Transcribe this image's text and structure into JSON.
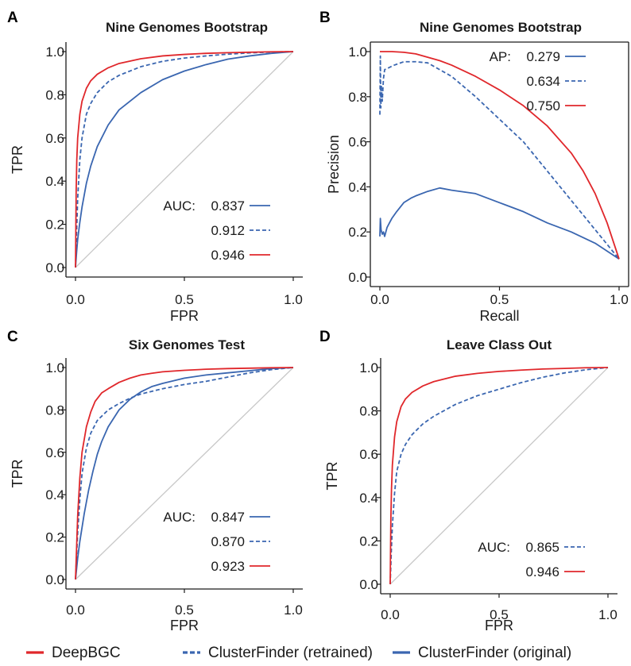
{
  "colors": {
    "red": "#e0272b",
    "blue": "#3a66b0",
    "diag": "#c8c8c8",
    "axis": "#1a1a1a"
  },
  "global_legend": [
    {
      "label": "DeepBGC",
      "color": "#e0272b",
      "style": "solid"
    },
    {
      "label": "ClusterFinder (retrained)",
      "color": "#3a66b0",
      "style": "dashed"
    },
    {
      "label": "ClusterFinder (original)",
      "color": "#3a66b0",
      "style": "solid"
    }
  ],
  "chart_data": [
    {
      "panel": "A",
      "type": "line",
      "title": "Nine Genomes Bootstrap",
      "xlabel": "FPR",
      "ylabel": "TPR",
      "xlim": [
        0,
        1
      ],
      "ylim": [
        0,
        1
      ],
      "xticks": [
        "0.0",
        "0.5",
        "1.0"
      ],
      "yticks": [
        "0.0",
        "0.2",
        "0.4",
        "0.6",
        "0.8",
        "1.0"
      ],
      "diagonal": true,
      "legend_position": "lower-right",
      "legend_prefix": "AUC:",
      "series": [
        {
          "name": "0.837",
          "model": "ClusterFinder (original)",
          "color": "#3a66b0",
          "style": "solid",
          "x": [
            0,
            0.005,
            0.01,
            0.02,
            0.03,
            0.05,
            0.07,
            0.1,
            0.15,
            0.2,
            0.3,
            0.4,
            0.5,
            0.6,
            0.7,
            0.8,
            0.9,
            1.0
          ],
          "y": [
            0,
            0.07,
            0.13,
            0.21,
            0.28,
            0.39,
            0.47,
            0.56,
            0.66,
            0.73,
            0.81,
            0.87,
            0.91,
            0.94,
            0.965,
            0.98,
            0.992,
            1.0
          ]
        },
        {
          "name": "0.912",
          "model": "ClusterFinder (retrained)",
          "color": "#3a66b0",
          "style": "dashed",
          "x": [
            0,
            0.005,
            0.01,
            0.02,
            0.03,
            0.05,
            0.07,
            0.1,
            0.15,
            0.2,
            0.3,
            0.4,
            0.5,
            0.6,
            0.7,
            0.8,
            0.9,
            1.0
          ],
          "y": [
            0,
            0.16,
            0.32,
            0.5,
            0.6,
            0.71,
            0.76,
            0.81,
            0.86,
            0.89,
            0.93,
            0.955,
            0.97,
            0.98,
            0.988,
            0.994,
            0.998,
            1.0
          ]
        },
        {
          "name": "0.946",
          "model": "DeepBGC",
          "color": "#e0272b",
          "style": "solid",
          "x": [
            0,
            0.003,
            0.006,
            0.01,
            0.02,
            0.03,
            0.05,
            0.07,
            0.1,
            0.15,
            0.2,
            0.3,
            0.4,
            0.5,
            0.6,
            0.7,
            0.8,
            0.9,
            1.0
          ],
          "y": [
            0,
            0.35,
            0.5,
            0.6,
            0.71,
            0.77,
            0.83,
            0.865,
            0.895,
            0.925,
            0.945,
            0.967,
            0.98,
            0.987,
            0.992,
            0.995,
            0.997,
            0.999,
            1.0
          ]
        }
      ]
    },
    {
      "panel": "B",
      "type": "line",
      "title": "Nine Genomes Bootstrap",
      "xlabel": "Recall",
      "ylabel": "Precision",
      "xlim": [
        0,
        1
      ],
      "ylim": [
        0,
        1
      ],
      "xticks": [
        "0.0",
        "0.5",
        "1.0"
      ],
      "yticks": [
        "0.0",
        "0.2",
        "0.4",
        "0.6",
        "0.8",
        "1.0"
      ],
      "diagonal": false,
      "legend_position": "top-right",
      "legend_prefix": "AP:",
      "series": [
        {
          "name": "0.279",
          "model": "ClusterFinder (original)",
          "color": "#3a66b0",
          "style": "solid",
          "x": [
            0,
            0.002,
            0.005,
            0.01,
            0.015,
            0.02,
            0.03,
            0.04,
            0.05,
            0.07,
            0.1,
            0.13,
            0.15,
            0.2,
            0.25,
            0.3,
            0.4,
            0.5,
            0.6,
            0.7,
            0.8,
            0.9,
            1.0
          ],
          "y": [
            0.18,
            0.26,
            0.21,
            0.19,
            0.2,
            0.18,
            0.22,
            0.24,
            0.26,
            0.29,
            0.33,
            0.35,
            0.36,
            0.38,
            0.395,
            0.385,
            0.37,
            0.33,
            0.29,
            0.24,
            0.2,
            0.15,
            0.08
          ]
        },
        {
          "name": "0.634",
          "model": "ClusterFinder (retrained)",
          "color": "#3a66b0",
          "style": "dashed",
          "x": [
            0,
            0.002,
            0.004,
            0.006,
            0.01,
            0.015,
            0.02,
            0.04,
            0.06,
            0.1,
            0.15,
            0.2,
            0.3,
            0.4,
            0.5,
            0.6,
            0.7,
            0.8,
            0.9,
            1.0
          ],
          "y": [
            0.72,
            0.98,
            0.75,
            0.85,
            0.78,
            0.88,
            0.92,
            0.93,
            0.94,
            0.955,
            0.955,
            0.95,
            0.89,
            0.8,
            0.7,
            0.6,
            0.47,
            0.34,
            0.21,
            0.08
          ]
        },
        {
          "name": "0.750",
          "model": "DeepBGC",
          "color": "#e0272b",
          "style": "solid",
          "x": [
            0,
            0.05,
            0.1,
            0.15,
            0.2,
            0.25,
            0.3,
            0.4,
            0.5,
            0.6,
            0.7,
            0.8,
            0.85,
            0.9,
            0.95,
            1.0
          ],
          "y": [
            1.0,
            1.0,
            0.997,
            0.99,
            0.975,
            0.96,
            0.94,
            0.89,
            0.83,
            0.76,
            0.67,
            0.55,
            0.47,
            0.37,
            0.24,
            0.08
          ]
        }
      ]
    },
    {
      "panel": "C",
      "type": "line",
      "title": "Six Genomes Test",
      "xlabel": "FPR",
      "ylabel": "TPR",
      "xlim": [
        0,
        1
      ],
      "ylim": [
        0,
        1
      ],
      "xticks": [
        "0.0",
        "0.5",
        "1.0"
      ],
      "yticks": [
        "0.0",
        "0.2",
        "0.4",
        "0.6",
        "0.8",
        "1.0"
      ],
      "diagonal": true,
      "legend_position": "lower-right",
      "legend_prefix": "AUC:",
      "series": [
        {
          "name": "0.847",
          "model": "ClusterFinder (original)",
          "color": "#3a66b0",
          "style": "solid",
          "x": [
            0,
            0.01,
            0.02,
            0.04,
            0.06,
            0.08,
            0.1,
            0.12,
            0.15,
            0.2,
            0.25,
            0.3,
            0.35,
            0.4,
            0.5,
            0.6,
            0.7,
            0.8,
            0.9,
            1.0
          ],
          "y": [
            0,
            0.1,
            0.18,
            0.31,
            0.42,
            0.51,
            0.59,
            0.65,
            0.72,
            0.8,
            0.85,
            0.885,
            0.91,
            0.925,
            0.95,
            0.965,
            0.975,
            0.985,
            0.995,
            1.0
          ]
        },
        {
          "name": "0.870",
          "model": "ClusterFinder (retrained)",
          "color": "#3a66b0",
          "style": "dashed",
          "x": [
            0,
            0.01,
            0.02,
            0.03,
            0.05,
            0.07,
            0.1,
            0.15,
            0.2,
            0.25,
            0.3,
            0.4,
            0.5,
            0.6,
            0.7,
            0.8,
            0.9,
            1.0
          ],
          "y": [
            0,
            0.22,
            0.38,
            0.5,
            0.62,
            0.69,
            0.75,
            0.8,
            0.83,
            0.855,
            0.875,
            0.9,
            0.92,
            0.935,
            0.955,
            0.975,
            0.99,
            1.0
          ]
        },
        {
          "name": "0.923",
          "model": "DeepBGC",
          "color": "#e0272b",
          "style": "solid",
          "x": [
            0,
            0.01,
            0.02,
            0.03,
            0.05,
            0.07,
            0.09,
            0.12,
            0.15,
            0.2,
            0.25,
            0.3,
            0.35,
            0.4,
            0.5,
            0.6,
            0.7,
            0.8,
            0.9,
            1.0
          ],
          "y": [
            0,
            0.3,
            0.48,
            0.6,
            0.72,
            0.79,
            0.84,
            0.88,
            0.9,
            0.93,
            0.95,
            0.965,
            0.973,
            0.98,
            0.987,
            0.992,
            0.995,
            0.997,
            0.999,
            1.0
          ]
        }
      ]
    },
    {
      "panel": "D",
      "type": "line",
      "title": "Leave Class Out",
      "xlabel": "FPR",
      "ylabel": "TPR",
      "xlim": [
        0,
        1
      ],
      "ylim": [
        0,
        1
      ],
      "xticks": [
        "0.0",
        "0.5",
        "1.0"
      ],
      "yticks": [
        "0.0",
        "0.2",
        "0.4",
        "0.6",
        "0.8",
        "1.0"
      ],
      "diagonal": true,
      "legend_position": "lower-right",
      "legend_prefix": "AUC:",
      "series": [
        {
          "name": "0.865",
          "model": "ClusterFinder (retrained)",
          "color": "#3a66b0",
          "style": "dashed",
          "x": [
            0,
            0.005,
            0.01,
            0.02,
            0.03,
            0.05,
            0.07,
            0.1,
            0.15,
            0.2,
            0.3,
            0.4,
            0.5,
            0.6,
            0.7,
            0.8,
            0.9,
            1.0
          ],
          "y": [
            0,
            0.15,
            0.27,
            0.42,
            0.52,
            0.6,
            0.645,
            0.69,
            0.74,
            0.775,
            0.83,
            0.87,
            0.9,
            0.93,
            0.955,
            0.975,
            0.99,
            1.0
          ]
        },
        {
          "name": "0.946",
          "model": "DeepBGC",
          "color": "#e0272b",
          "style": "solid",
          "x": [
            0,
            0.003,
            0.006,
            0.01,
            0.02,
            0.03,
            0.05,
            0.07,
            0.1,
            0.15,
            0.2,
            0.3,
            0.4,
            0.5,
            0.6,
            0.7,
            0.8,
            0.9,
            1.0
          ],
          "y": [
            0,
            0.3,
            0.44,
            0.55,
            0.68,
            0.75,
            0.82,
            0.855,
            0.885,
            0.915,
            0.935,
            0.96,
            0.973,
            0.982,
            0.988,
            0.993,
            0.996,
            0.999,
            1.0
          ]
        }
      ]
    }
  ]
}
